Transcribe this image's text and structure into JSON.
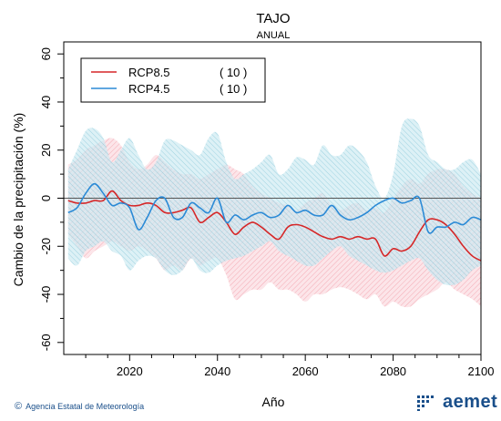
{
  "chart_data": {
    "type": "line",
    "title": "TAJO",
    "subtitle": "ANUAL",
    "xlabel": "Año",
    "ylabel": "Cambio de la precipitación (%)",
    "xlim": [
      2005,
      2100
    ],
    "ylim": [
      -65,
      65
    ],
    "xticks": [
      2020,
      2040,
      2060,
      2080,
      2100
    ],
    "yticks": [
      -60,
      -40,
      -20,
      0,
      20,
      40,
      60
    ],
    "reference_line": 0,
    "grid": false,
    "legend_position": "top-left",
    "x": [
      2006,
      2008,
      2010,
      2012,
      2014,
      2016,
      2018,
      2020,
      2022,
      2024,
      2026,
      2028,
      2030,
      2032,
      2034,
      2036,
      2038,
      2040,
      2042,
      2044,
      2046,
      2048,
      2050,
      2052,
      2054,
      2056,
      2058,
      2060,
      2062,
      2064,
      2066,
      2068,
      2070,
      2072,
      2074,
      2076,
      2078,
      2080,
      2082,
      2084,
      2086,
      2088,
      2090,
      2092,
      2094,
      2096,
      2098,
      2100
    ],
    "series": [
      {
        "name": "RCP8.5",
        "count_label": "( 10 )",
        "color": "#d62728",
        "band_color": "#f4a7b0",
        "values": [
          -1,
          -2,
          -2,
          -1,
          -1,
          3,
          -1,
          -3,
          -3,
          -2,
          -3,
          -6,
          -6,
          -5,
          -4,
          -10,
          -8,
          -6,
          -10,
          -15,
          -12,
          -10,
          -12,
          -15,
          -17,
          -12,
          -11,
          -12,
          -14,
          -16,
          -17,
          -16,
          -17,
          -16,
          -17,
          -17,
          -24,
          -21,
          -22,
          -20,
          -14,
          -9,
          -9,
          -11,
          -15,
          -20,
          -24,
          -26
        ],
        "upper": [
          14,
          16,
          20,
          22,
          24,
          25,
          22,
          15,
          12,
          14,
          18,
          15,
          12,
          10,
          10,
          8,
          10,
          12,
          14,
          12,
          10,
          5,
          2,
          0,
          -2,
          -3,
          -5,
          -2,
          0,
          2,
          -3,
          -5,
          -3,
          -2,
          -5,
          -4,
          -6,
          0,
          5,
          8,
          6,
          10,
          12,
          12,
          10,
          5,
          2,
          0
        ],
        "lower": [
          -15,
          -20,
          -25,
          -22,
          -20,
          -18,
          -20,
          -22,
          -20,
          -22,
          -25,
          -30,
          -28,
          -30,
          -25,
          -28,
          -26,
          -25,
          -32,
          -42,
          -40,
          -38,
          -38,
          -35,
          -38,
          -38,
          -40,
          -43,
          -40,
          -40,
          -38,
          -37,
          -38,
          -40,
          -42,
          -40,
          -45,
          -43,
          -45,
          -45,
          -42,
          -40,
          -38,
          -35,
          -38,
          -40,
          -42,
          -45
        ]
      },
      {
        "name": "RCP4.5",
        "count_label": "( 10 )",
        "color": "#2b8ad6",
        "band_color": "#8ecfe0",
        "values": [
          -6,
          -4,
          2,
          6,
          2,
          -3,
          -2,
          -4,
          -13,
          -8,
          -1,
          0,
          -8,
          -8,
          -2,
          -4,
          -6,
          0,
          -10,
          -7,
          -9,
          -7,
          -6,
          -8,
          -7,
          -3,
          -6,
          -5,
          -7,
          -7,
          -3,
          -7,
          -9,
          -8,
          -6,
          -3,
          -1,
          0,
          -2,
          -1,
          0,
          -14,
          -12,
          -12,
          -10,
          -11,
          -8,
          -9
        ],
        "upper": [
          12,
          20,
          28,
          29,
          25,
          15,
          20,
          25,
          18,
          12,
          15,
          24,
          24,
          22,
          20,
          18,
          25,
          27,
          15,
          8,
          10,
          12,
          15,
          18,
          10,
          12,
          17,
          16,
          14,
          22,
          18,
          18,
          22,
          20,
          15,
          5,
          0,
          10,
          30,
          33,
          30,
          18,
          15,
          12,
          12,
          15,
          16,
          10
        ],
        "lower": [
          -25,
          -28,
          -22,
          -20,
          -18,
          -22,
          -24,
          -30,
          -26,
          -24,
          -25,
          -30,
          -32,
          -30,
          -25,
          -30,
          -31,
          -28,
          -26,
          -25,
          -24,
          -22,
          -20,
          -18,
          -22,
          -24,
          -26,
          -28,
          -28,
          -25,
          -22,
          -20,
          -24,
          -26,
          -28,
          -30,
          -31,
          -30,
          -28,
          -26,
          -25,
          -30,
          -34,
          -36,
          -36,
          -34,
          -30,
          -28
        ]
      }
    ]
  },
  "footer": {
    "copyright_symbol": "©",
    "agency": "Agencia Estatal de Meteorología",
    "logo_text": "aemet",
    "logo_color": "#1a4f8a"
  }
}
